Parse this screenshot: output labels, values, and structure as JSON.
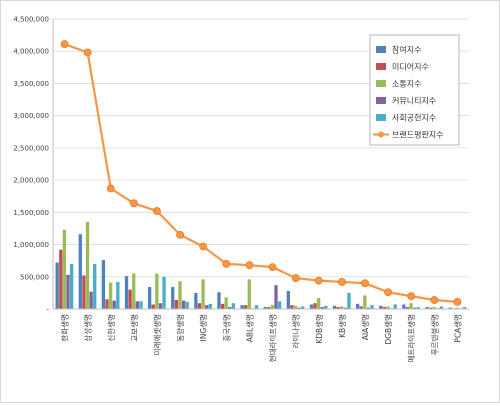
{
  "chart_data": {
    "type": "bar",
    "title": "",
    "xlabel": "",
    "ylabel": "",
    "ylim": [
      0,
      4500000
    ],
    "yticks": [
      0,
      500000,
      1000000,
      1500000,
      2000000,
      2500000,
      3000000,
      3500000,
      4000000,
      4500000
    ],
    "ytick_labels": [
      "-",
      "500,000",
      "1,000,000",
      "1,500,000",
      "2,000,000",
      "2,500,000",
      "3,000,000",
      "3,500,000",
      "4,000,000",
      "4,500,000"
    ],
    "grid": true,
    "legend_position": "top-right",
    "categories": [
      "한화생명",
      "삼성생명",
      "신한생명",
      "교보생명",
      "미래에셋생명",
      "동양생명",
      "ING생명",
      "흥국생명",
      "ABL생명",
      "현대라이프생명",
      "라이나생명",
      "KDB생명",
      "KB생명",
      "AIA생명",
      "DGB생명",
      "메트라이프생명",
      "푸르덴셜생명",
      "PCA생명"
    ],
    "series": [
      {
        "name": "참여지수",
        "type": "bar",
        "color": "#4f81bd",
        "values": [
          720000,
          1160000,
          760000,
          510000,
          340000,
          340000,
          250000,
          260000,
          60000,
          30000,
          280000,
          70000,
          50000,
          80000,
          50000,
          70000,
          30000,
          20000
        ]
      },
      {
        "name": "미디어지수",
        "type": "bar",
        "color": "#c0504d",
        "values": [
          920000,
          520000,
          150000,
          300000,
          70000,
          140000,
          90000,
          80000,
          60000,
          30000,
          60000,
          90000,
          30000,
          40000,
          30000,
          30000,
          20000,
          10000
        ]
      },
      {
        "name": "소통지수",
        "type": "bar",
        "color": "#9bbb59",
        "values": [
          1230000,
          1350000,
          410000,
          550000,
          550000,
          430000,
          460000,
          180000,
          460000,
          60000,
          50000,
          170000,
          40000,
          210000,
          40000,
          90000,
          30000,
          20000
        ]
      },
      {
        "name": "커뮤니티지수",
        "type": "bar",
        "color": "#8064a2",
        "values": [
          530000,
          270000,
          130000,
          120000,
          90000,
          130000,
          60000,
          30000,
          10000,
          370000,
          20000,
          30000,
          20000,
          20000,
          10000,
          20000,
          10000,
          10000
        ]
      },
      {
        "name": "사회공헌지수",
        "type": "bar",
        "color": "#4bacc6",
        "values": [
          700000,
          700000,
          420000,
          120000,
          500000,
          110000,
          80000,
          90000,
          60000,
          120000,
          40000,
          50000,
          250000,
          60000,
          70000,
          30000,
          40000,
          30000
        ]
      },
      {
        "name": "브랜드평판지수",
        "type": "line",
        "color": "#f79646",
        "values": [
          4110000,
          3980000,
          1870000,
          1640000,
          1520000,
          1150000,
          970000,
          700000,
          680000,
          650000,
          480000,
          440000,
          420000,
          400000,
          260000,
          200000,
          140000,
          110000
        ]
      }
    ]
  }
}
